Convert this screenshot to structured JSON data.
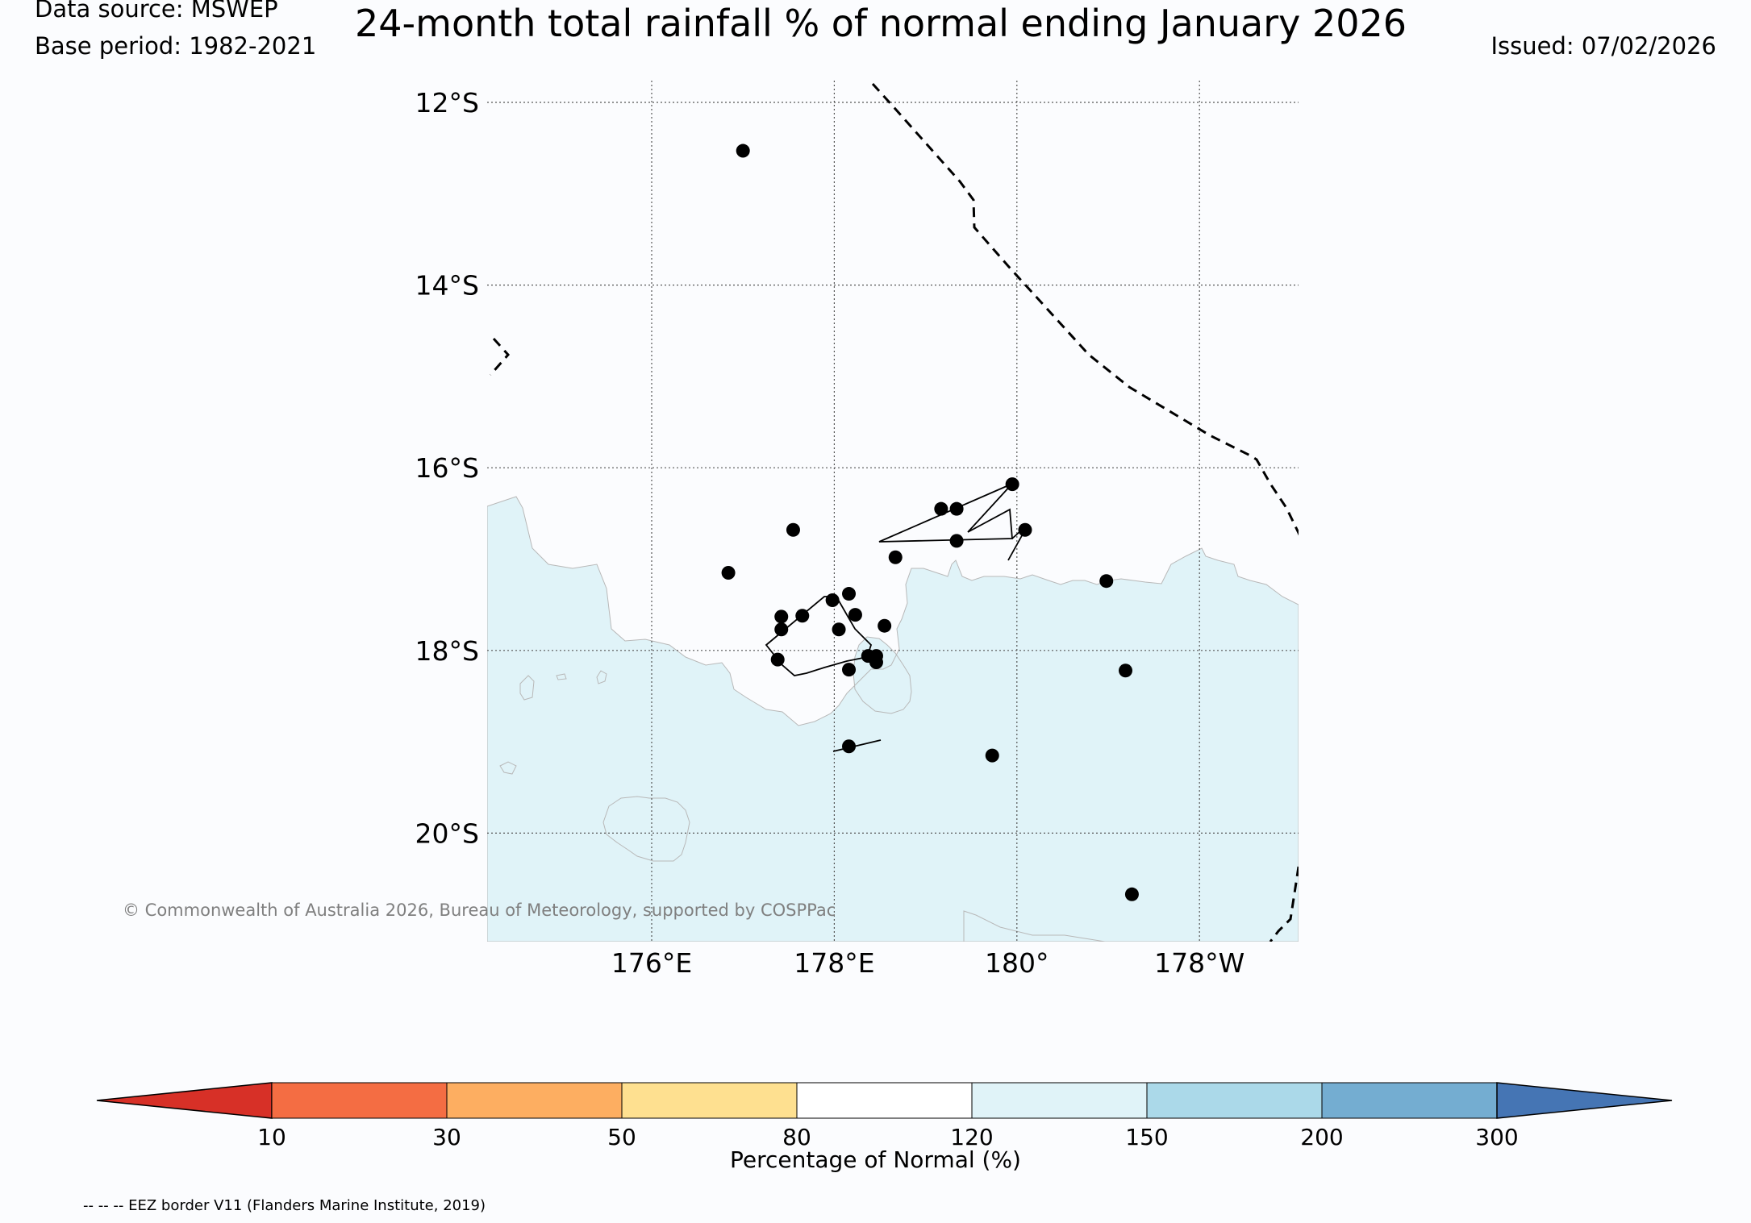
{
  "header": {
    "source_line": "Data source: MSWEP",
    "base_line": "Base period: 1982-2021",
    "title": "24-month total rainfall % of normal ending January 2026",
    "issued_line": "Issued: 07/02/2026"
  },
  "map": {
    "lat_labels": [
      "12°S",
      "14°S",
      "16°S",
      "18°S",
      "20°S"
    ],
    "lon_labels": [
      "176°E",
      "178°E",
      "180°",
      "178°W"
    ],
    "copyright": "© Commonwealth of Australia 2026, Bureau of Meteorology, supported by COSPPac",
    "land_color": "#fbfcfe",
    "band_color": "#e0f3f8",
    "stations": [
      {
        "lon": 177.0,
        "lat": -12.53
      },
      {
        "lon": 176.84,
        "lat": -17.15
      },
      {
        "lon": 177.55,
        "lat": -16.68
      },
      {
        "lon": 177.42,
        "lat": -17.63
      },
      {
        "lon": 177.42,
        "lat": -17.77
      },
      {
        "lon": 177.65,
        "lat": -17.62
      },
      {
        "lon": 177.38,
        "lat": -18.1
      },
      {
        "lon": 177.98,
        "lat": -17.45
      },
      {
        "lon": 178.05,
        "lat": -17.77
      },
      {
        "lon": 178.16,
        "lat": -17.38
      },
      {
        "lon": 178.23,
        "lat": -17.61
      },
      {
        "lon": 178.55,
        "lat": -17.73
      },
      {
        "lon": 178.37,
        "lat": -18.06
      },
      {
        "lon": 178.46,
        "lat": -18.06
      },
      {
        "lon": 178.46,
        "lat": -18.13
      },
      {
        "lon": 178.16,
        "lat": -18.21
      },
      {
        "lon": 178.16,
        "lat": -19.05
      },
      {
        "lon": 178.67,
        "lat": -16.98
      },
      {
        "lon": 179.17,
        "lat": -16.45
      },
      {
        "lon": 179.34,
        "lat": -16.45
      },
      {
        "lon": 179.34,
        "lat": -16.8
      },
      {
        "lon": 179.95,
        "lat": -16.18
      },
      {
        "lon": 180.09,
        "lat": -16.68
      },
      {
        "lon": 180.98,
        "lat": -17.24
      },
      {
        "lon": 181.19,
        "lat": -18.22
      },
      {
        "lon": 179.73,
        "lat": -19.15
      },
      {
        "lon": 181.26,
        "lat": -20.67
      }
    ]
  },
  "colorbar": {
    "label": "Percentage of Normal (%)",
    "ticks": [
      "10",
      "30",
      "50",
      "80",
      "120",
      "150",
      "200",
      "300"
    ],
    "colors": [
      "#d73027",
      "#f46d43",
      "#fdae61",
      "#fee090",
      "#ffffff",
      "#e0f3f8",
      "#abd9e9",
      "#74add1",
      "#4575b4"
    ]
  },
  "footer": {
    "eez_note": "-- -- -- EEZ border V11 (Flanders Marine Institute, 2019)"
  }
}
